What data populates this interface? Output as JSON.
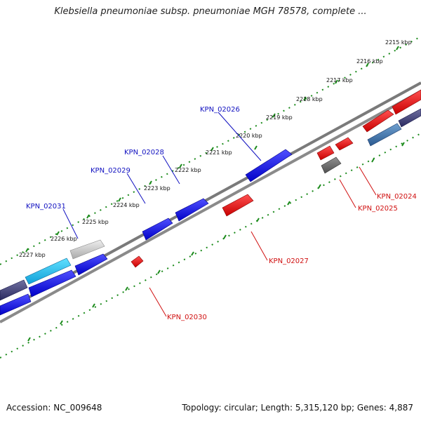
{
  "title": "Klebsiella pneumoniae subsp. pneumoniae MGH 78578, complete ...",
  "footer": {
    "accession": "Accession: NC_009648",
    "summary": "Topology: circular; Length: 5,315,120 bp; Genes: 4,887"
  },
  "colors": {
    "forward_gene": "#1010e0",
    "reverse_gene": "#e81010",
    "forward_label": "#1010c0",
    "reverse_label": "#d01010",
    "backbone": "#808080",
    "tick_ring": "#1a8a1a"
  },
  "scale_labels": [
    "2215 kbp",
    "2216 kbp",
    "2217 kbp",
    "2218 kbp",
    "2219 kbp",
    "2220 kbp",
    "2221 kbp",
    "2222 kbp",
    "2223 kbp",
    "2224 kbp",
    "2225 kbp",
    "2226 kbp",
    "2227 kbp"
  ],
  "gene_labels": {
    "forward": [
      "KPN_02026",
      "KPN_02028",
      "KPN_02029",
      "KPN_02031"
    ],
    "reverse": [
      "KPN_02024",
      "KPN_02025",
      "KPN_02027",
      "KPN_02030"
    ]
  }
}
